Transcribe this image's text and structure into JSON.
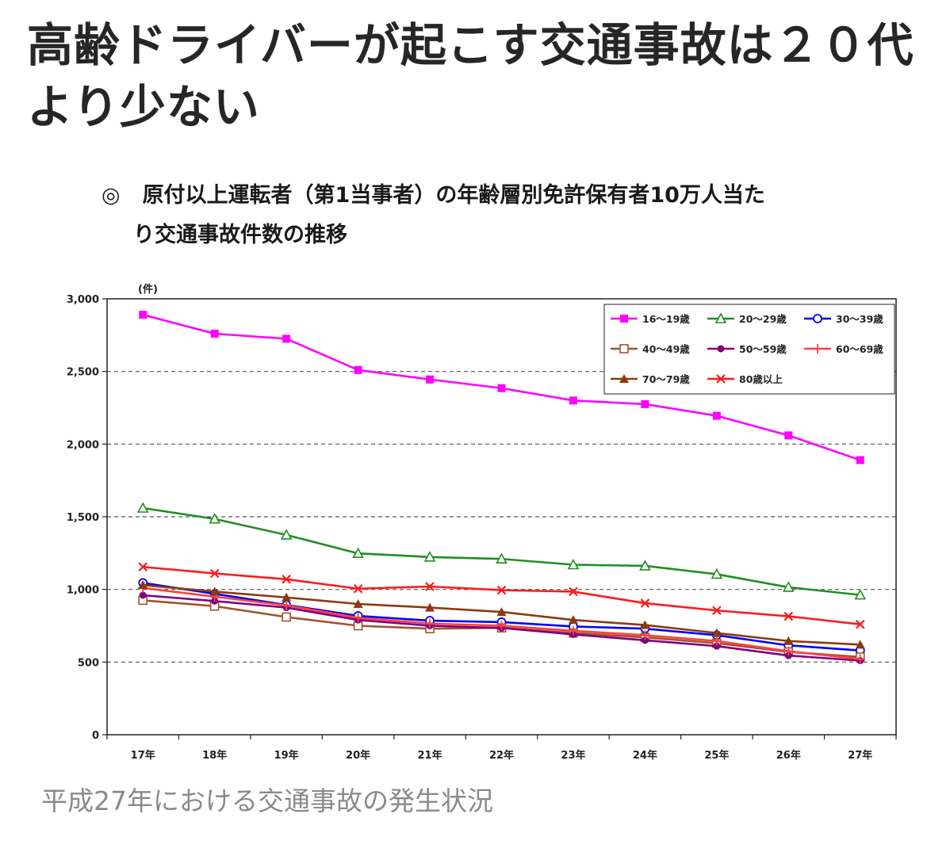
{
  "headline": "高齢ドライバーが起こす交通事故は２０代より少ない",
  "chart_title": {
    "mark": "◎",
    "line1": "原付以上運転者（第1当事者）の年齢層別免許保有者10万人当た",
    "line2": "り交通事故件数の推移"
  },
  "caption": "平成27年における交通事故の発生状況",
  "chart_data": {
    "type": "line",
    "categories": [
      "17年",
      "18年",
      "19年",
      "20年",
      "21年",
      "22年",
      "23年",
      "24年",
      "25年",
      "26年",
      "27年"
    ],
    "ylabel": "(件)",
    "xlabel": "",
    "ylim": [
      0,
      3000
    ],
    "y_ticks": [
      0,
      500,
      1000,
      1500,
      2000,
      2500,
      3000
    ],
    "y_tick_labels": [
      "0",
      "500",
      "1,000",
      "1,500",
      "2,000",
      "2,500",
      "3,000"
    ],
    "grid": "horizontal dashed",
    "legend_position": "top-right",
    "series": [
      {
        "name": "16～19歳",
        "color": "#ff00ff",
        "marker": "square-filled",
        "values": [
          2890,
          2760,
          2725,
          2510,
          2445,
          2385,
          2300,
          2275,
          2195,
          2060,
          1890
        ]
      },
      {
        "name": "20～29歳",
        "color": "#1f8f1f",
        "marker": "triangle-open",
        "values": [
          1560,
          1485,
          1375,
          1248,
          1223,
          1210,
          1170,
          1162,
          1105,
          1015,
          962
        ]
      },
      {
        "name": "30～39歳",
        "color": "#0000ff",
        "marker": "circle-open",
        "values": [
          1045,
          970,
          893,
          818,
          785,
          775,
          745,
          730,
          685,
          615,
          580
        ]
      },
      {
        "name": "40～49歳",
        "color": "#a0522d",
        "marker": "square-open",
        "values": [
          925,
          885,
          810,
          750,
          730,
          735,
          700,
          670,
          630,
          570,
          535
        ]
      },
      {
        "name": "50～59歳",
        "color": "#800080",
        "marker": "circle-filled",
        "values": [
          960,
          920,
          875,
          790,
          750,
          735,
          690,
          650,
          610,
          545,
          510
        ]
      },
      {
        "name": "60～69歳",
        "color": "#ff4040",
        "marker": "plus",
        "values": [
          1010,
          950,
          890,
          805,
          765,
          750,
          715,
          685,
          645,
          575,
          520
        ]
      },
      {
        "name": "70～79歳",
        "color": "#8b3a0f",
        "marker": "triangle-filled",
        "values": [
          1030,
          985,
          945,
          900,
          875,
          845,
          790,
          755,
          700,
          645,
          620
        ]
      },
      {
        "name": "80歳以上",
        "color": "#ff1a1a",
        "marker": "cross",
        "values": [
          1155,
          1110,
          1070,
          1005,
          1020,
          995,
          985,
          905,
          855,
          815,
          760
        ]
      }
    ]
  }
}
